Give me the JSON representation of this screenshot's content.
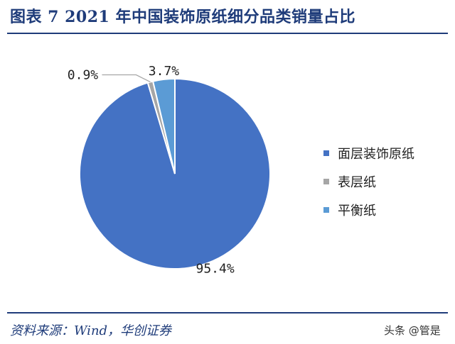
{
  "header": {
    "title": "图表 7  2021 年中国装饰原纸细分品类销量占比"
  },
  "footer": {
    "source": "资料来源：Wind，华创证券",
    "watermark": "头条 @管是"
  },
  "chart_data": {
    "type": "pie",
    "title": "",
    "categories": [
      "面层装饰原纸",
      "表层纸",
      "平衡纸"
    ],
    "values": [
      95.4,
      0.9,
      3.7
    ],
    "data_labels": [
      "95.4%",
      "0.9%",
      "3.7%"
    ],
    "colors": [
      "#4472c4",
      "#a6a6a6",
      "#5b9bd5"
    ],
    "legend_position": "right",
    "start_angle": "12 o'clock, clockwise order: 面层装饰原纸, 表层纸, 平衡纸"
  }
}
